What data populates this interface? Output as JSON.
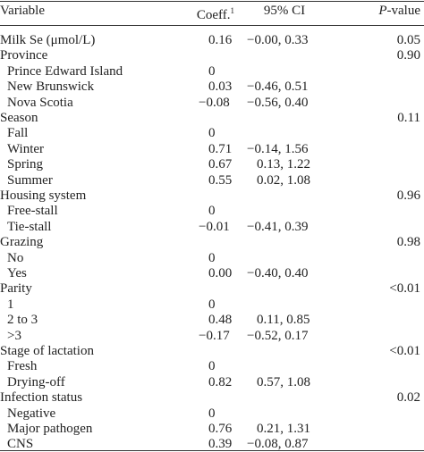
{
  "header": {
    "variable": "Variable",
    "coeff": "Coeff.",
    "coeff_note": "1",
    "ci": "95% CI",
    "p_italic": "P",
    "p_rest": "-value"
  },
  "groups": [
    {
      "name": "Milk Se (μmol/L)",
      "coeff": "0.16",
      "ci": "−0.00, 0.33",
      "p": "0.05"
    },
    {
      "name": "Province",
      "p": "0.90",
      "levels": [
        {
          "label": "Prince Edward Island",
          "coeff": "0"
        },
        {
          "label": "New Brunswick",
          "coeff": "0.03",
          "ci": "−0.46, 0.51"
        },
        {
          "label": "Nova Scotia",
          "coeff": "−0.08",
          "ci": "−0.56, 0.40"
        }
      ]
    },
    {
      "name": "Season",
      "p": "0.11",
      "levels": [
        {
          "label": "Fall",
          "coeff": "0"
        },
        {
          "label": "Winter",
          "coeff": "0.71",
          "ci": "−0.14, 1.56"
        },
        {
          "label": "Spring",
          "coeff": "0.67",
          "ci": "0.13, 1.22"
        },
        {
          "label": "Summer",
          "coeff": "0.55",
          "ci": "0.02, 1.08"
        }
      ]
    },
    {
      "name": "Housing system",
      "p": "0.96",
      "levels": [
        {
          "label": "Free-stall",
          "coeff": "0"
        },
        {
          "label": "Tie-stall",
          "coeff": "−0.01",
          "ci": "−0.41, 0.39"
        }
      ]
    },
    {
      "name": "Grazing",
      "p": "0.98",
      "levels": [
        {
          "label": "No",
          "coeff": "0"
        },
        {
          "label": "Yes",
          "coeff": "0.00",
          "ci": "−0.40, 0.40"
        }
      ]
    },
    {
      "name": "Parity",
      "p": "<0.01",
      "levels": [
        {
          "label": "1",
          "coeff": "0"
        },
        {
          "label": "2 to 3",
          "coeff": "0.48",
          "ci": "0.11, 0.85"
        },
        {
          "label": ">3",
          "coeff": "−0.17",
          "ci": "−0.52, 0.17"
        }
      ]
    },
    {
      "name": "Stage of lactation",
      "p": "<0.01",
      "levels": [
        {
          "label": "Fresh",
          "coeff": "0"
        },
        {
          "label": "Drying-off",
          "coeff": "0.82",
          "ci": "0.57, 1.08"
        }
      ]
    },
    {
      "name": "Infection status",
      "p": "0.02",
      "levels": [
        {
          "label": "Negative",
          "coeff": "0"
        },
        {
          "label": "Major pathogen",
          "coeff": "0.76",
          "ci": "0.21, 1.31"
        },
        {
          "label": "CNS",
          "coeff": "0.39",
          "ci": "−0.08, 0.87"
        }
      ]
    }
  ]
}
